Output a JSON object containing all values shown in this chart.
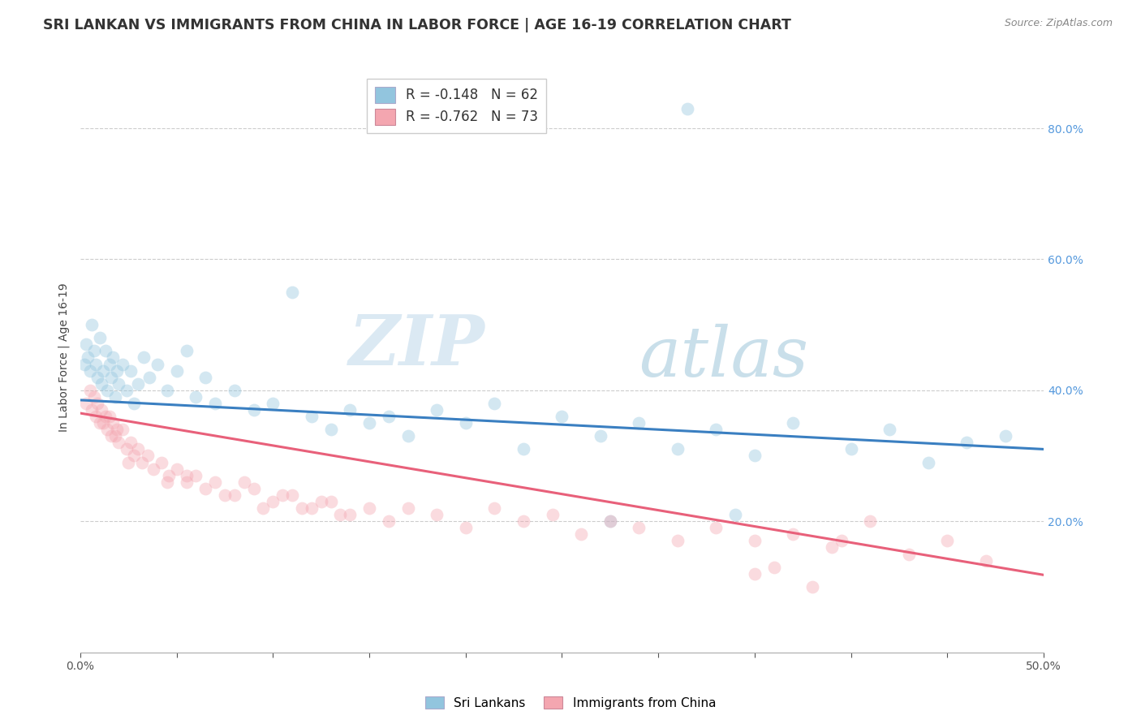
{
  "title": "SRI LANKAN VS IMMIGRANTS FROM CHINA IN LABOR FORCE | AGE 16-19 CORRELATION CHART",
  "source": "Source: ZipAtlas.com",
  "ylabel": "In Labor Force | Age 16-19",
  "xlim": [
    0.0,
    0.5
  ],
  "ylim": [
    0.0,
    0.9
  ],
  "xticks": [
    0.0,
    0.05,
    0.1,
    0.15,
    0.2,
    0.25,
    0.3,
    0.35,
    0.4,
    0.45,
    0.5
  ],
  "xtick_labels": [
    "0.0%",
    "",
    "",
    "",
    "",
    "",
    "",
    "",
    "",
    "",
    "50.0%"
  ],
  "yticks_right": [
    0.2,
    0.4,
    0.6,
    0.8
  ],
  "ytick_labels_right": [
    "20.0%",
    "40.0%",
    "60.0%",
    "80.0%"
  ],
  "legend_blue_r": "R = -0.148",
  "legend_blue_n": "N = 62",
  "legend_pink_r": "R = -0.762",
  "legend_pink_n": "N = 73",
  "blue_color": "#92c5de",
  "pink_color": "#f4a6b0",
  "blue_line_color": "#3a7fc1",
  "pink_line_color": "#e8607a",
  "watermark_zip": "ZIP",
  "watermark_atlas": "atlas",
  "background_color": "#ffffff",
  "grid_color": "#cccccc",
  "title_color": "#333333",
  "title_fontsize": 12.5,
  "axis_label_fontsize": 10,
  "tick_fontsize": 10,
  "marker_size": 130,
  "marker_alpha": 0.4,
  "blue_line_start": 0.385,
  "blue_line_end": 0.31,
  "pink_line_start": 0.365,
  "pink_line_end": 0.118,
  "sri_lankan_x": [
    0.002,
    0.003,
    0.004,
    0.005,
    0.006,
    0.007,
    0.008,
    0.009,
    0.01,
    0.011,
    0.012,
    0.013,
    0.014,
    0.015,
    0.016,
    0.017,
    0.018,
    0.019,
    0.02,
    0.022,
    0.024,
    0.026,
    0.028,
    0.03,
    0.033,
    0.036,
    0.04,
    0.045,
    0.05,
    0.055,
    0.06,
    0.065,
    0.07,
    0.08,
    0.09,
    0.1,
    0.11,
    0.12,
    0.13,
    0.14,
    0.15,
    0.16,
    0.17,
    0.185,
    0.2,
    0.215,
    0.23,
    0.25,
    0.27,
    0.29,
    0.31,
    0.33,
    0.35,
    0.37,
    0.4,
    0.42,
    0.44,
    0.46,
    0.48,
    0.34,
    0.275,
    0.315
  ],
  "sri_lankan_y": [
    0.44,
    0.47,
    0.45,
    0.43,
    0.5,
    0.46,
    0.44,
    0.42,
    0.48,
    0.41,
    0.43,
    0.46,
    0.4,
    0.44,
    0.42,
    0.45,
    0.39,
    0.43,
    0.41,
    0.44,
    0.4,
    0.43,
    0.38,
    0.41,
    0.45,
    0.42,
    0.44,
    0.4,
    0.43,
    0.46,
    0.39,
    0.42,
    0.38,
    0.4,
    0.37,
    0.38,
    0.55,
    0.36,
    0.34,
    0.37,
    0.35,
    0.36,
    0.33,
    0.37,
    0.35,
    0.38,
    0.31,
    0.36,
    0.33,
    0.35,
    0.31,
    0.34,
    0.3,
    0.35,
    0.31,
    0.34,
    0.29,
    0.32,
    0.33,
    0.21,
    0.2,
    0.83
  ],
  "china_x": [
    0.003,
    0.005,
    0.006,
    0.007,
    0.008,
    0.009,
    0.01,
    0.011,
    0.012,
    0.013,
    0.014,
    0.015,
    0.016,
    0.017,
    0.018,
    0.019,
    0.02,
    0.022,
    0.024,
    0.026,
    0.028,
    0.03,
    0.032,
    0.035,
    0.038,
    0.042,
    0.046,
    0.05,
    0.055,
    0.06,
    0.065,
    0.07,
    0.08,
    0.09,
    0.1,
    0.11,
    0.12,
    0.13,
    0.14,
    0.15,
    0.16,
    0.17,
    0.185,
    0.2,
    0.215,
    0.23,
    0.245,
    0.26,
    0.275,
    0.29,
    0.31,
    0.33,
    0.35,
    0.37,
    0.39,
    0.41,
    0.43,
    0.45,
    0.47,
    0.35,
    0.36,
    0.38,
    0.395,
    0.055,
    0.045,
    0.025,
    0.075,
    0.085,
    0.095,
    0.105,
    0.115,
    0.125,
    0.135
  ],
  "china_y": [
    0.38,
    0.4,
    0.37,
    0.39,
    0.36,
    0.38,
    0.35,
    0.37,
    0.35,
    0.36,
    0.34,
    0.36,
    0.33,
    0.35,
    0.33,
    0.34,
    0.32,
    0.34,
    0.31,
    0.32,
    0.3,
    0.31,
    0.29,
    0.3,
    0.28,
    0.29,
    0.27,
    0.28,
    0.26,
    0.27,
    0.25,
    0.26,
    0.24,
    0.25,
    0.23,
    0.24,
    0.22,
    0.23,
    0.21,
    0.22,
    0.2,
    0.22,
    0.21,
    0.19,
    0.22,
    0.2,
    0.21,
    0.18,
    0.2,
    0.19,
    0.17,
    0.19,
    0.17,
    0.18,
    0.16,
    0.2,
    0.15,
    0.17,
    0.14,
    0.12,
    0.13,
    0.1,
    0.17,
    0.27,
    0.26,
    0.29,
    0.24,
    0.26,
    0.22,
    0.24,
    0.22,
    0.23,
    0.21
  ]
}
